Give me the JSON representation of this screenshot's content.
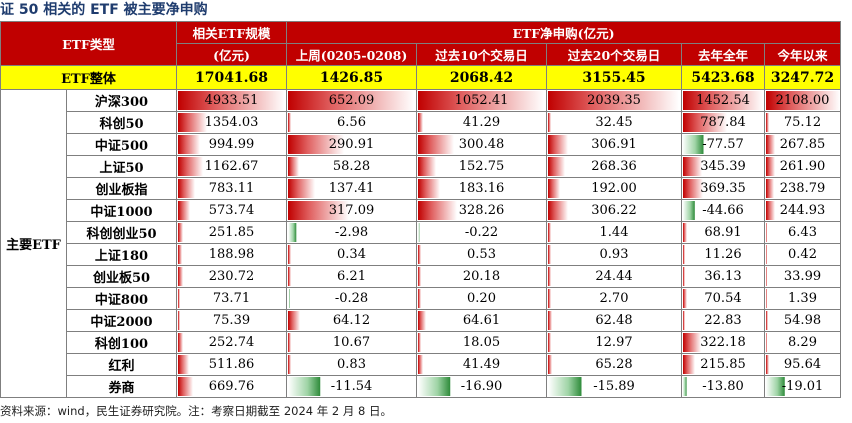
{
  "title": "证 50 相关的 ETF 被主要净申购",
  "source": "资料来源：wind，民生证券研究院。注：考察日期截至 2024 年 2 月 8 日。",
  "header": {
    "row1": [
      "ETF类型",
      "相关ETF规模",
      "ETF净申购(亿元)",
      "",
      "",
      "",
      ""
    ],
    "labels": {
      "type": "ETF类型",
      "size_line1": "相关ETF规模",
      "size_line2": "(亿元)",
      "net": "ETF净申购(亿元)",
      "last_week": "上周(0205-0208)",
      "d10": "过去10个交易日",
      "d20": "过去20个交易日",
      "last_year": "去年全年",
      "ytd": "今年以来"
    }
  },
  "total": {
    "label": "ETF整体",
    "values": [
      "17041.68",
      "1426.85",
      "2068.42",
      "3155.45",
      "5423.68",
      "3247.72"
    ]
  },
  "group_label": "主要ETF",
  "rows": [
    {
      "name": "沪深300",
      "values": [
        "4933.51",
        "652.09",
        "1052.41",
        "2039.35",
        "1452.54",
        "2108.00"
      ]
    },
    {
      "name": "科创50",
      "values": [
        "1354.03",
        "6.56",
        "41.29",
        "32.45",
        "787.84",
        "75.12"
      ]
    },
    {
      "name": "中证500",
      "values": [
        "994.99",
        "290.91",
        "300.48",
        "306.91",
        "-77.57",
        "267.85"
      ]
    },
    {
      "name": "上证50",
      "values": [
        "1162.67",
        "58.28",
        "152.75",
        "268.36",
        "345.39",
        "261.90"
      ]
    },
    {
      "name": "创业板指",
      "values": [
        "783.11",
        "137.41",
        "183.16",
        "192.00",
        "369.35",
        "238.79"
      ]
    },
    {
      "name": "中证1000",
      "values": [
        "573.74",
        "317.09",
        "328.26",
        "306.22",
        "-44.66",
        "244.93"
      ]
    },
    {
      "name": "科创创业50",
      "values": [
        "251.85",
        "-2.98",
        "-0.22",
        "1.44",
        "68.91",
        "6.43"
      ]
    },
    {
      "name": "上证180",
      "values": [
        "188.98",
        "0.34",
        "0.53",
        "0.93",
        "11.26",
        "0.42"
      ]
    },
    {
      "name": "创业板50",
      "values": [
        "230.72",
        "6.21",
        "20.18",
        "24.44",
        "36.13",
        "33.99"
      ]
    },
    {
      "name": "中证800",
      "values": [
        "73.71",
        "-0.28",
        "0.20",
        "2.70",
        "70.54",
        "1.39"
      ]
    },
    {
      "name": "中证2000",
      "values": [
        "75.39",
        "64.12",
        "64.61",
        "62.48",
        "22.83",
        "54.98"
      ]
    },
    {
      "name": "科创100",
      "values": [
        "252.74",
        "10.67",
        "18.05",
        "12.97",
        "322.18",
        "8.29"
      ]
    },
    {
      "name": "红利",
      "values": [
        "511.86",
        "0.83",
        "41.49",
        "65.28",
        "215.85",
        "95.64"
      ]
    },
    {
      "name": "券商",
      "values": [
        "669.76",
        "-11.54",
        "-16.90",
        "-15.89",
        "-13.80",
        "-19.01"
      ]
    }
  ],
  "colors": {
    "header": "#c00000",
    "total": "#ffff00",
    "bar_positive": "#c00000",
    "bar_negative": "#2e8b3a",
    "title": "#1f3c6e"
  }
}
